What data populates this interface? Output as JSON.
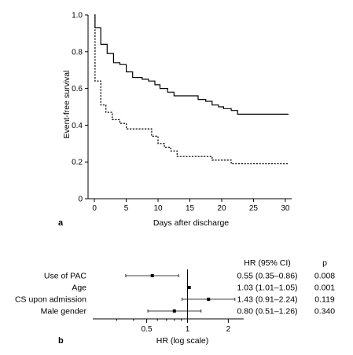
{
  "chart_data": [
    {
      "panel": "a",
      "type": "line",
      "step": true,
      "xlabel": "Days after discharge",
      "ylabel": "Event-free survival",
      "xlim": [
        -1,
        31
      ],
      "ylim": [
        0,
        1.0
      ],
      "xticks": [
        0,
        5,
        10,
        15,
        20,
        25,
        30
      ],
      "yticks": [
        0,
        0.2,
        0.4,
        0.6,
        0.8,
        1.0
      ],
      "ytick_labels": [
        "0",
        "0.2",
        "0.4",
        "0.6",
        "0.8",
        "1.0"
      ],
      "series": [
        {
          "style": "solid",
          "x": [
            0,
            0.1,
            1.0,
            2.0,
            3.0,
            4.0,
            5.0,
            6.0,
            7.5,
            8.5,
            9.5,
            10.3,
            11.5,
            12.5,
            16.3,
            17.5,
            18.5,
            19.5,
            20.3,
            21.5,
            22.5,
            30.5
          ],
          "y": [
            1.0,
            0.93,
            0.84,
            0.79,
            0.74,
            0.73,
            0.69,
            0.66,
            0.65,
            0.64,
            0.62,
            0.6,
            0.58,
            0.56,
            0.54,
            0.53,
            0.51,
            0.5,
            0.49,
            0.48,
            0.46,
            0.46
          ]
        },
        {
          "style": "dashed",
          "x": [
            0,
            0.1,
            1.0,
            1.8,
            2.8,
            4.0,
            5.0,
            9.0,
            10.0,
            11.0,
            12.0,
            13.0,
            18.5,
            21.5,
            30.5
          ],
          "y": [
            1.0,
            0.64,
            0.51,
            0.47,
            0.43,
            0.41,
            0.38,
            0.34,
            0.3,
            0.28,
            0.26,
            0.23,
            0.21,
            0.19,
            0.19
          ]
        }
      ]
    },
    {
      "panel": "b",
      "type": "forest",
      "xlabel": "HR (log scale)",
      "log_x": true,
      "xlim": [
        0.2,
        2.6
      ],
      "xticks": [
        0.5,
        1,
        2
      ],
      "xtick_labels": [
        "0.5",
        "1",
        "2"
      ],
      "reference_line": 1,
      "col_headers": {
        "hr": "HR (95% CI)",
        "p": "p"
      },
      "rows": [
        {
          "label": "Use of PAC",
          "hr": 0.55,
          "lo": 0.35,
          "hi": 0.86,
          "hr_text": "0.55 (0.35–0.86)",
          "p": "0.008"
        },
        {
          "label": "Age",
          "hr": 1.03,
          "lo": 1.01,
          "hi": 1.05,
          "hr_text": "1.03 (1.01–1.05)",
          "p": "0.001"
        },
        {
          "label": "CS upon admission",
          "hr": 1.43,
          "lo": 0.91,
          "hi": 2.24,
          "hr_text": "1.43 (0.91–2.24)",
          "p": "0.119"
        },
        {
          "label": "Male gender",
          "hr": 0.8,
          "lo": 0.51,
          "hi": 1.26,
          "hr_text": "0.80 (0.51–1.26)",
          "p": "0.340"
        }
      ]
    }
  ],
  "panel_labels": {
    "a": "a",
    "b": "b"
  }
}
